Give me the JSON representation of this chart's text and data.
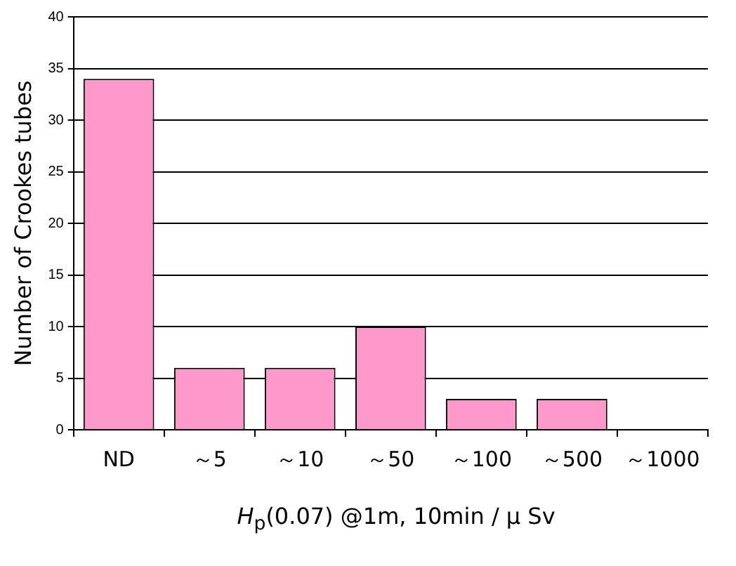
{
  "chart_data": {
    "type": "bar",
    "xlabel": "H$_{p}$(0.07) @1m, 10min / μ Sv",
    "ylabel": "Number of Crookes tubes",
    "categories": [
      "ND",
      "～5",
      "～10",
      "～50",
      "～100",
      "～500",
      "～1000"
    ],
    "values": [
      34,
      6,
      6,
      10,
      3,
      3,
      0
    ],
    "color": "#ff99cc",
    "ylim": [
      0,
      40
    ],
    "yticks": [
      0,
      5,
      10,
      15,
      20,
      25,
      30,
      35,
      40
    ],
    "grid": "y"
  }
}
